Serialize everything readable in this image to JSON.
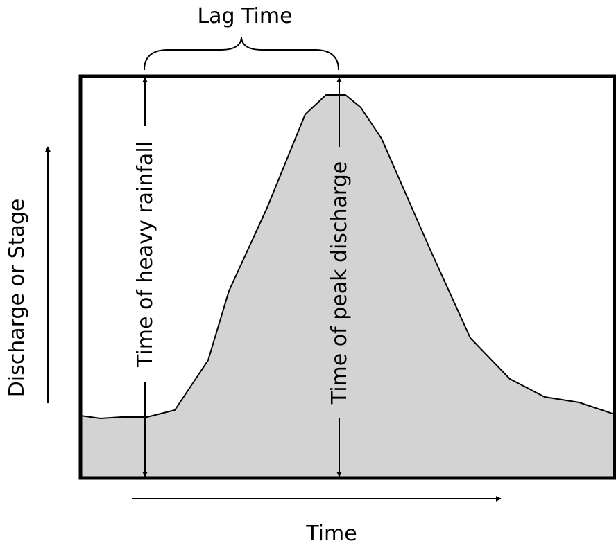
{
  "labels": {
    "lag_time": "Lag Time",
    "x_axis": "Time",
    "y_axis": "Discharge or Stage",
    "heavy_rainfall": "Time of heavy rainfall",
    "peak_discharge": "Time of peak discharge"
  },
  "colors": {
    "area_fill": "#d3d3d3",
    "stroke": "#000000",
    "background": "#ffffff"
  }
}
